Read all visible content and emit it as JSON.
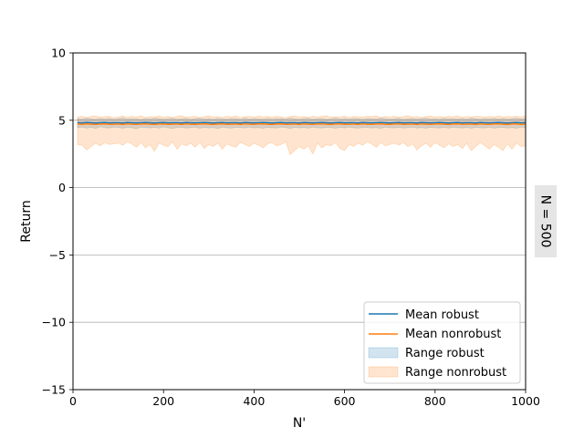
{
  "chart_data": {
    "type": "area",
    "title": "",
    "xlabel": "N'",
    "ylabel": "Return",
    "xlim": [
      0,
      1000
    ],
    "ylim": [
      -15,
      10
    ],
    "x_ticks": [
      0,
      200,
      400,
      600,
      800,
      1000
    ],
    "x_tick_labels": [
      "0",
      "200",
      "400",
      "600",
      "800",
      "1000"
    ],
    "y_ticks": [
      -15,
      -10,
      -5,
      0,
      5,
      10
    ],
    "y_tick_labels": [
      "−15",
      "−10",
      "−5",
      "0",
      "5",
      "10"
    ],
    "grid": "horizontal",
    "facet_label": "N = 500",
    "legend_position": "lower-right",
    "x": [
      10,
      20,
      30,
      40,
      50,
      60,
      70,
      80,
      90,
      100,
      110,
      120,
      130,
      140,
      150,
      160,
      170,
      180,
      190,
      200,
      210,
      220,
      230,
      240,
      250,
      260,
      270,
      280,
      290,
      300,
      310,
      320,
      330,
      340,
      350,
      360,
      370,
      380,
      390,
      400,
      410,
      420,
      430,
      440,
      450,
      460,
      470,
      480,
      490,
      500,
      510,
      520,
      530,
      540,
      550,
      560,
      570,
      580,
      590,
      600,
      610,
      620,
      630,
      640,
      650,
      660,
      670,
      680,
      690,
      700,
      710,
      720,
      730,
      740,
      750,
      760,
      770,
      780,
      790,
      800,
      810,
      820,
      830,
      840,
      850,
      860,
      870,
      880,
      890,
      900,
      910,
      920,
      930,
      940,
      950,
      960,
      970,
      980,
      990,
      1000
    ],
    "series": [
      {
        "name": "Mean robust",
        "color": "#1f77b4",
        "mean": [
          4.82,
          4.81,
          4.83,
          4.82,
          4.8,
          4.82,
          4.83,
          4.81,
          4.82,
          4.82,
          4.8,
          4.83,
          4.82,
          4.81,
          4.82,
          4.83,
          4.82,
          4.8,
          4.82,
          4.83,
          4.81,
          4.82,
          4.82,
          4.8,
          4.83,
          4.82,
          4.81,
          4.82,
          4.83,
          4.82,
          4.8,
          4.82,
          4.83,
          4.81,
          4.82,
          4.82,
          4.8,
          4.83,
          4.82,
          4.81,
          4.82,
          4.83,
          4.82,
          4.8,
          4.82,
          4.83,
          4.81,
          4.82,
          4.82,
          4.8,
          4.83,
          4.82,
          4.81,
          4.82,
          4.83,
          4.82,
          4.8,
          4.82,
          4.83,
          4.81,
          4.82,
          4.82,
          4.8,
          4.83,
          4.82,
          4.81,
          4.82,
          4.83,
          4.82,
          4.8,
          4.82,
          4.83,
          4.81,
          4.82,
          4.82,
          4.8,
          4.83,
          4.82,
          4.81,
          4.82,
          4.83,
          4.82,
          4.8,
          4.82,
          4.83,
          4.81,
          4.82,
          4.82,
          4.8,
          4.83,
          4.82,
          4.81,
          4.82,
          4.83,
          4.82,
          4.8,
          4.82,
          4.83,
          4.81,
          4.82
        ],
        "min": [
          4.45,
          4.5,
          4.42,
          4.48,
          4.4,
          4.52,
          4.46,
          4.43,
          4.5,
          4.47,
          4.41,
          4.49,
          4.45,
          4.38,
          4.5,
          4.46,
          4.44,
          4.48,
          4.42,
          4.51,
          4.45,
          4.4,
          4.47,
          4.49,
          4.43,
          4.46,
          4.5,
          4.41,
          4.48,
          4.44,
          4.46,
          4.39,
          4.5,
          4.45,
          4.42,
          4.48,
          4.47,
          4.43,
          4.5,
          4.44,
          4.46,
          4.41,
          4.49,
          4.45,
          4.43,
          4.5,
          4.46,
          4.4,
          4.48,
          4.44,
          4.47,
          4.42,
          4.5,
          4.45,
          4.43,
          4.49,
          4.46,
          4.41,
          4.48,
          4.44,
          4.5,
          4.45,
          4.42,
          4.47,
          4.49,
          4.43,
          4.46,
          4.4,
          4.5,
          4.45,
          4.44,
          4.48,
          4.42,
          4.47,
          4.5,
          4.43,
          4.46,
          4.41,
          4.49,
          4.45,
          4.44,
          4.48,
          4.42,
          4.5,
          4.46,
          4.43,
          4.47,
          4.41,
          4.49,
          4.45,
          4.44,
          4.5,
          4.42,
          4.46,
          4.48,
          4.43,
          4.47,
          4.41,
          4.5,
          4.45
        ],
        "max": [
          5.12,
          5.08,
          5.15,
          5.1,
          5.06,
          5.13,
          5.09,
          5.14,
          5.07,
          5.11,
          5.16,
          5.08,
          5.12,
          5.1,
          5.05,
          5.13,
          5.09,
          5.15,
          5.11,
          5.07,
          5.12,
          5.14,
          5.08,
          5.1,
          5.13,
          5.06,
          5.11,
          5.15,
          5.09,
          5.12,
          5.07,
          5.14,
          5.1,
          5.08,
          5.13,
          5.11,
          5.06,
          5.15,
          5.09,
          5.12,
          5.1,
          5.07,
          5.14,
          5.08,
          5.13,
          5.11,
          5.09,
          5.16,
          5.1,
          5.07,
          5.12,
          5.14,
          5.08,
          5.11,
          5.13,
          5.06,
          5.1,
          5.15,
          5.09,
          5.12,
          5.08,
          5.14,
          5.11,
          5.07,
          5.13,
          5.1,
          5.09,
          5.15,
          5.12,
          5.08,
          5.11,
          5.14,
          5.06,
          5.1,
          5.13,
          5.09,
          5.12,
          5.15,
          5.08,
          5.11,
          5.07,
          5.14,
          5.1,
          5.12,
          5.09,
          5.13,
          5.08,
          5.15,
          5.11,
          5.07,
          5.12,
          5.1,
          5.14,
          5.09,
          5.13,
          5.08,
          5.11,
          5.15,
          5.1,
          5.12
        ]
      },
      {
        "name": "Mean nonrobust",
        "color": "#ff7f0e",
        "mean": [
          4.72,
          4.7,
          4.73,
          4.71,
          4.69,
          4.72,
          4.73,
          4.7,
          4.71,
          4.72,
          4.69,
          4.73,
          4.71,
          4.7,
          4.72,
          4.73,
          4.71,
          4.69,
          4.72,
          4.73,
          4.7,
          4.71,
          4.72,
          4.69,
          4.73,
          4.71,
          4.7,
          4.72,
          4.73,
          4.71,
          4.69,
          4.72,
          4.73,
          4.7,
          4.71,
          4.72,
          4.69,
          4.73,
          4.71,
          4.7,
          4.72,
          4.73,
          4.71,
          4.69,
          4.72,
          4.73,
          4.7,
          4.71,
          4.72,
          4.69,
          4.73,
          4.71,
          4.7,
          4.72,
          4.73,
          4.71,
          4.69,
          4.72,
          4.73,
          4.7,
          4.71,
          4.72,
          4.69,
          4.73,
          4.71,
          4.7,
          4.72,
          4.73,
          4.71,
          4.69,
          4.72,
          4.73,
          4.7,
          4.71,
          4.72,
          4.69,
          4.73,
          4.71,
          4.7,
          4.72,
          4.73,
          4.71,
          4.69,
          4.72,
          4.73,
          4.7,
          4.71,
          4.72,
          4.69,
          4.73,
          4.71,
          4.7,
          4.72,
          4.73,
          4.71,
          4.69,
          4.72,
          4.73,
          4.7,
          4.71
        ],
        "min": [
          3.2,
          3.15,
          2.8,
          3.05,
          3.3,
          3.1,
          3.35,
          3.2,
          3.25,
          3.3,
          3.15,
          3.4,
          3.25,
          3.0,
          3.35,
          2.95,
          3.2,
          2.7,
          3.3,
          3.15,
          3.05,
          3.4,
          2.85,
          3.25,
          3.1,
          3.3,
          3.0,
          3.35,
          2.9,
          3.2,
          3.05,
          3.3,
          2.85,
          3.25,
          3.1,
          3.0,
          3.35,
          3.2,
          3.05,
          3.3,
          3.15,
          2.95,
          3.25,
          3.35,
          3.1,
          3.2,
          3.4,
          2.45,
          2.75,
          3.05,
          2.85,
          3.1,
          2.5,
          3.3,
          2.95,
          3.2,
          3.1,
          3.35,
          2.9,
          2.75,
          3.2,
          3.05,
          3.3,
          3.15,
          3.4,
          3.25,
          3.0,
          3.35,
          3.1,
          3.2,
          3.3,
          3.15,
          3.35,
          3.05,
          3.25,
          2.8,
          3.1,
          3.3,
          3.0,
          3.35,
          3.15,
          2.95,
          3.25,
          3.05,
          3.2,
          2.9,
          3.3,
          2.75,
          3.05,
          3.35,
          3.1,
          2.85,
          3.2,
          3.0,
          2.75,
          3.25,
          2.85,
          3.3,
          3.05,
          3.1
        ],
        "max": [
          5.25,
          5.3,
          5.2,
          5.28,
          5.32,
          5.22,
          5.27,
          5.3,
          5.18,
          5.26,
          5.31,
          5.22,
          5.29,
          5.24,
          5.33,
          5.2,
          5.27,
          5.25,
          5.31,
          5.23,
          5.29,
          5.21,
          5.28,
          5.34,
          5.22,
          5.26,
          5.3,
          5.19,
          5.27,
          5.32,
          5.24,
          5.28,
          5.21,
          5.3,
          5.25,
          5.33,
          5.2,
          5.27,
          5.29,
          5.23,
          5.31,
          5.25,
          5.28,
          5.22,
          5.3,
          5.26,
          5.19,
          5.29,
          5.32,
          5.24,
          5.27,
          5.21,
          5.3,
          5.25,
          5.28,
          5.33,
          5.22,
          5.27,
          5.24,
          5.31,
          5.2,
          5.29,
          5.26,
          5.23,
          5.3,
          5.27,
          5.32,
          5.21,
          5.28,
          5.25,
          5.3,
          5.22,
          5.27,
          5.33,
          5.24,
          5.29,
          5.2,
          5.28,
          5.31,
          5.25,
          5.27,
          5.22,
          5.3,
          5.26,
          5.33,
          5.21,
          5.28,
          5.24,
          5.3,
          5.27,
          5.22,
          5.29,
          5.25,
          5.32,
          5.23,
          5.28,
          5.26,
          5.31,
          5.24,
          5.34
        ]
      }
    ],
    "legend": [
      {
        "label": "Mean robust",
        "kind": "line",
        "color": "#1f77b4"
      },
      {
        "label": "Mean nonrobust",
        "kind": "line",
        "color": "#ff7f0e"
      },
      {
        "label": "Range robust",
        "kind": "fill",
        "color": "#1f77b4"
      },
      {
        "label": "Range nonrobust",
        "kind": "fill",
        "color": "#ff7f0e"
      }
    ]
  }
}
